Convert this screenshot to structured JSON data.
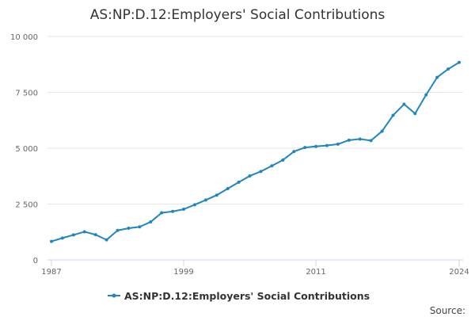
{
  "chart_data": {
    "type": "line",
    "title": "AS:NP:D.12:Employers' Social Contributions",
    "xlabel": "",
    "ylabel": "",
    "xlim": [
      1987,
      2024
    ],
    "ylim": [
      0,
      10000
    ],
    "x_ticks": [
      "1987",
      "1999",
      "2011",
      "2024"
    ],
    "y_ticks": [
      "0",
      "2 500",
      "5 000",
      "7 500",
      "10 000"
    ],
    "grid": true,
    "legend_position": "bottom",
    "source_label": "Source:",
    "series": [
      {
        "name": "AS:NP:D.12:Employers' Social Contributions",
        "color": "#1f86c0",
        "x": [
          1987,
          1988,
          1989,
          1990,
          1991,
          1992,
          1993,
          1994,
          1995,
          1996,
          1997,
          1998,
          1999,
          2000,
          2001,
          2002,
          2003,
          2004,
          2005,
          2006,
          2007,
          2008,
          2009,
          2010,
          2011,
          2012,
          2013,
          2014,
          2015,
          2016,
          2017,
          2018,
          2019,
          2020,
          2021,
          2022,
          2023,
          2024
        ],
        "values": [
          830,
          980,
          1120,
          1260,
          1130,
          900,
          1320,
          1420,
          1480,
          1700,
          2110,
          2170,
          2270,
          2470,
          2680,
          2900,
          3190,
          3480,
          3760,
          3960,
          4210,
          4470,
          4850,
          5030,
          5080,
          5120,
          5180,
          5360,
          5410,
          5340,
          5760,
          6470,
          6970,
          6550,
          7390,
          8170,
          8540,
          8840
        ]
      }
    ]
  }
}
